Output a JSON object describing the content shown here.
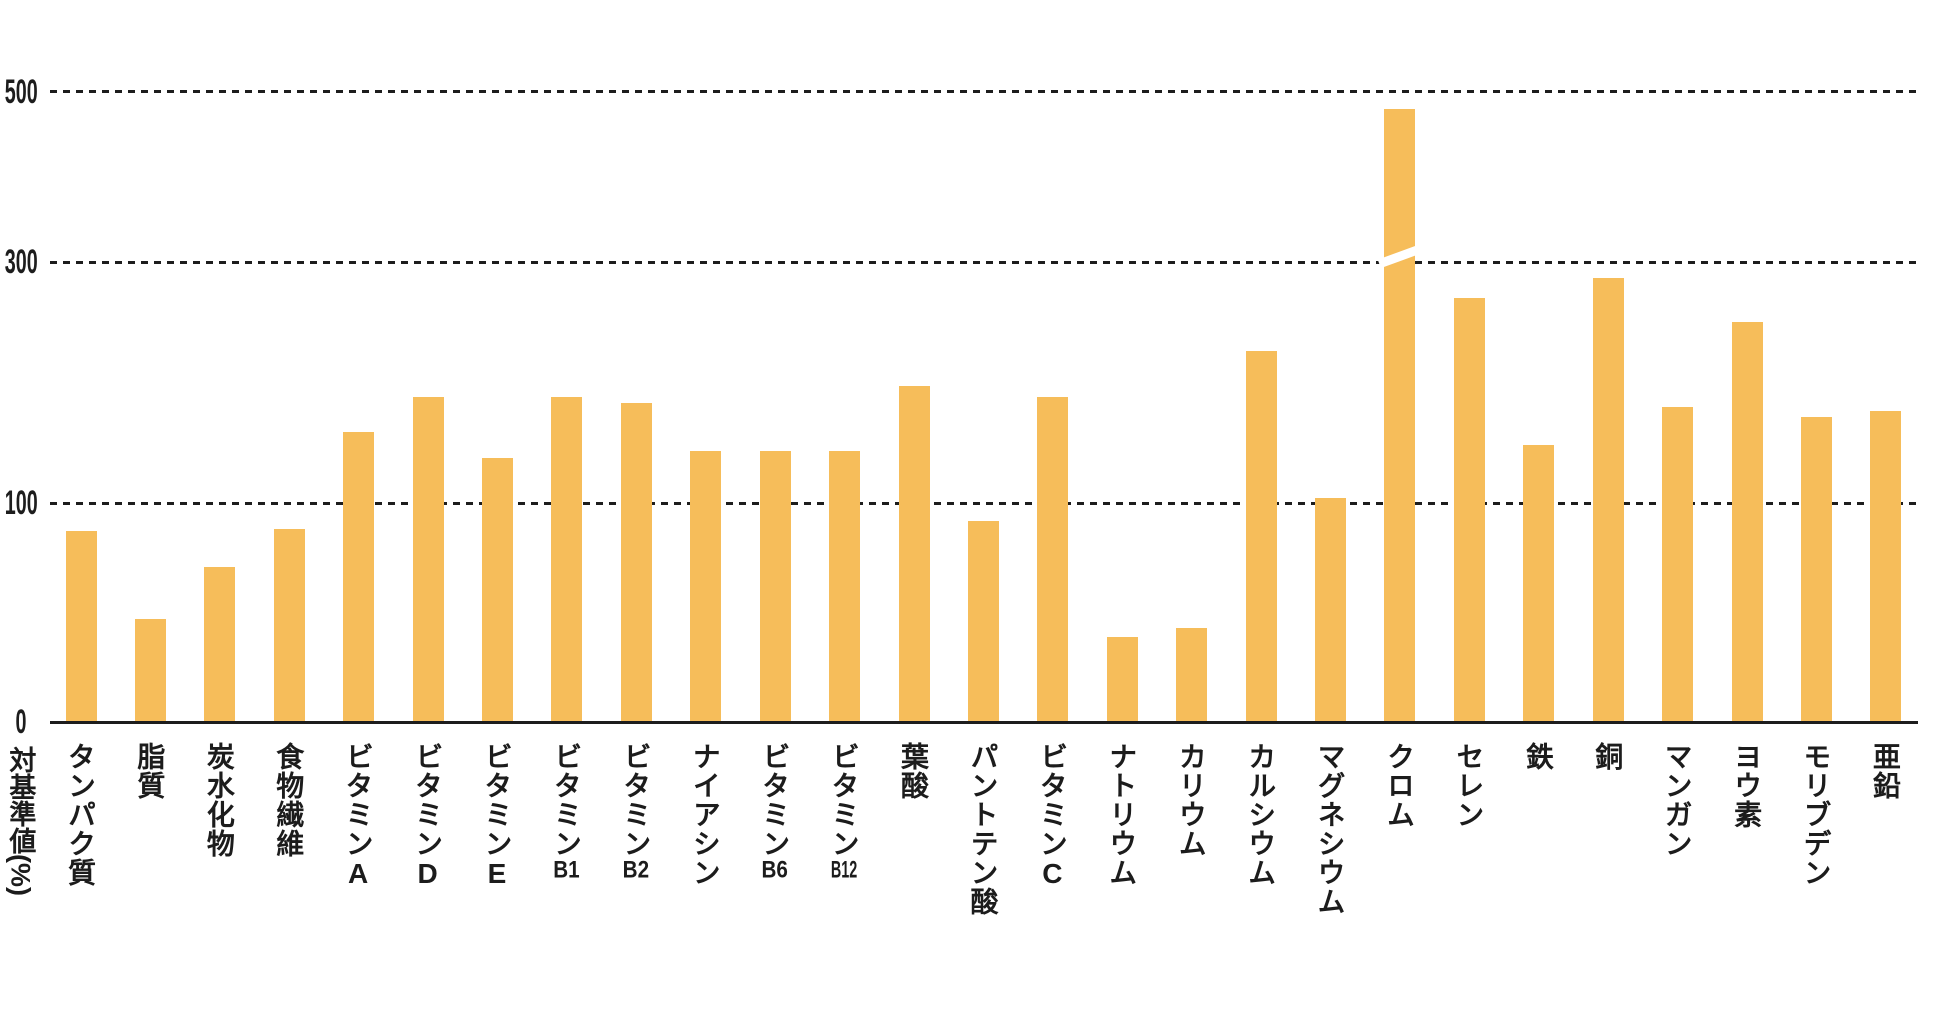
{
  "chart_data": {
    "type": "bar",
    "title": "",
    "ylabel": "対基準値(%)",
    "categories": [
      "タンパク質",
      "脂質",
      "炭水化物",
      "食物繊維",
      "ビタミンA",
      "ビタミンD",
      "ビタミンE",
      "ビタミンB1",
      "ビタミンB2",
      "ナイアシン",
      "ビタミンB6",
      "ビタミンB12",
      "葉酸",
      "パントテン酸",
      "ビタミンC",
      "ナトリウム",
      "カリウム",
      "カルシウム",
      "マグネシウム",
      "クロム",
      "セレン",
      "鉄",
      "銅",
      "マンガン",
      "ヨウ素",
      "モリブデン",
      "亜鉛"
    ],
    "values": [
      87,
      47,
      71,
      88,
      159,
      188,
      137,
      188,
      183,
      143,
      143,
      143,
      197,
      92,
      188,
      39,
      43,
      226,
      104,
      480,
      270,
      148,
      287,
      180,
      250,
      171,
      176
    ],
    "yticks": [
      0,
      100,
      300,
      500
    ],
    "ylim": [
      0,
      520
    ],
    "grid": "horizontal dotted lines at 100, 300 and 500, solid baseline at 0",
    "legend_position": "none",
    "axis_scale_note": "y axis is non-linear: the 0-100, 100-300 and 300-500 segments use different pixel scales",
    "broken_bar_category": "クロム",
    "broken_bar_break_at": 300,
    "colors": {
      "bar": "#F6BD5A",
      "axis": "#1D1D1D",
      "background": "#FFFFFF"
    }
  }
}
